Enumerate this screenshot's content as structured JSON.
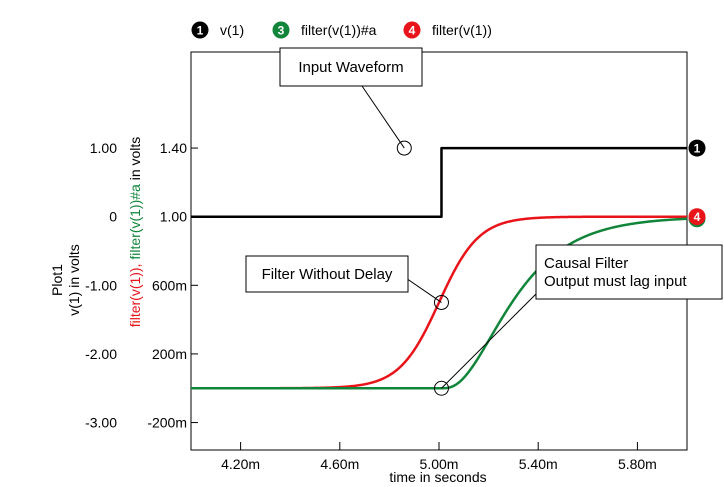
{
  "chart_data": {
    "type": "line",
    "x_axis": {
      "label": "time in seconds",
      "range": [
        4.0,
        6.0
      ],
      "ticks": [
        4.2,
        4.6,
        5.0,
        5.4,
        5.8
      ],
      "tick_labels": [
        "4.20m",
        "4.60m",
        "5.00m",
        "5.40m",
        "5.80m"
      ]
    },
    "y_axis_left": {
      "title_lines": [
        "Plot1",
        "v(1) in volts"
      ],
      "range": [
        -3.4,
        2.4
      ],
      "ticks": [
        1.0,
        0,
        -1.0,
        -2.0,
        -3.0
      ],
      "tick_labels": [
        "1.00",
        "0",
        "-1.00",
        "-2.00",
        "-3.00"
      ]
    },
    "y_axis_right": {
      "title_parts": [
        {
          "text": "filter(v(1)), ",
          "color": "#e8141a"
        },
        {
          "text": "filter(v(1))#a",
          "color": "#11853a"
        },
        {
          "text": " in volts",
          "color": "#000000"
        }
      ],
      "range": [
        -0.36,
        1.96
      ],
      "ticks": [
        1.4,
        1.0,
        0.6,
        0.2,
        -0.2
      ],
      "tick_labels": [
        "1.40",
        "1.00",
        "600m",
        "200m",
        "-200m"
      ]
    },
    "grid": false,
    "legend": [
      {
        "badge": "1",
        "label": "v(1)",
        "color": "#000000"
      },
      {
        "badge": "3",
        "label": "filter(v(1))#a",
        "color": "#11853a"
      },
      {
        "badge": "4",
        "label": "filter(v(1))",
        "color": "#e8141a"
      }
    ],
    "series": [
      {
        "name": "v(1)",
        "badge": "1",
        "color": "#000000",
        "axis": "left",
        "shape": "step",
        "x_step": 5.01,
        "y_low": 0.0,
        "y_high": 1.0
      },
      {
        "name": "filter(v(1))#a",
        "badge": "3",
        "color": "#11853a",
        "axis": "right",
        "shape": "causal",
        "x_start": 5.01,
        "y_low": 0.0,
        "y_high": 1.0,
        "tau": 0.18
      },
      {
        "name": "filter(v(1))",
        "badge": "4",
        "color": "#e8141a",
        "axis": "right",
        "shape": "logistic",
        "x_mid": 5.0,
        "y_low": 0.0,
        "y_high": 1.0,
        "width": 0.08
      }
    ],
    "annotations": [
      {
        "lines": [
          "Input Waveform"
        ],
        "x": 4.86,
        "y": 1.0
      },
      {
        "lines": [
          "Filter Without Delay"
        ],
        "x": 5.01,
        "y": 0.5
      },
      {
        "lines": [
          "Causal Filter",
          "Output must lag input"
        ],
        "x": 5.01,
        "y": 0.0
      }
    ]
  }
}
